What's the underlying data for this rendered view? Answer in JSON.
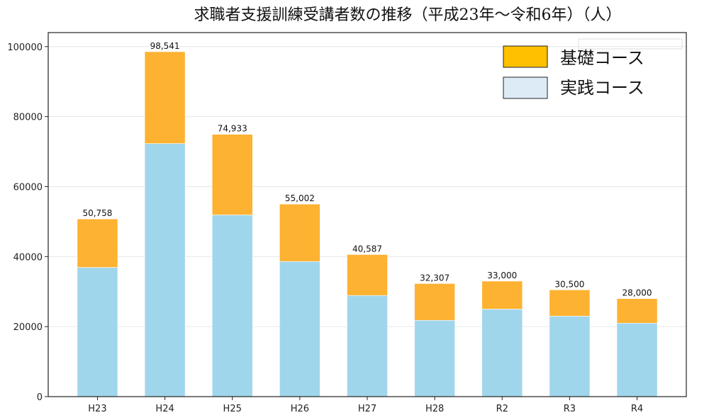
{
  "chart_data": {
    "type": "bar",
    "stacked": true,
    "title": "求職者支援訓練受講者数の推移（平成23年～令和6年）（人）",
    "xlabel": "",
    "ylabel": "",
    "categories": [
      "H23",
      "H24",
      "H25",
      "H26",
      "H27",
      "H28",
      "R2",
      "R3",
      "R4"
    ],
    "series": [
      {
        "name": "実践コース",
        "color": "#A0D6EC",
        "values": [
          36900,
          72300,
          51900,
          38600,
          28900,
          21800,
          25000,
          23000,
          21000
        ]
      },
      {
        "name": "基礎コース",
        "color": "#FDB232",
        "values": [
          13858,
          26241,
          23033,
          16402,
          11687,
          10507,
          8000,
          7500,
          7000
        ]
      }
    ],
    "totals": [
      50758,
      98541,
      74933,
      55002,
      40587,
      32307,
      33000,
      30500,
      28000
    ],
    "total_labels": [
      "50,758",
      "98,541",
      "74,933",
      "55,002",
      "40,587",
      "32,307",
      "33,000",
      "30,500",
      "28,000"
    ],
    "ylim": [
      0,
      104000
    ],
    "yticks": [
      0,
      20000,
      40000,
      60000,
      80000,
      100000
    ],
    "ytick_labels": [
      "0",
      "20000",
      "40000",
      "60000",
      "80000",
      "100000"
    ],
    "grid": "horizontal",
    "legend": {
      "placement": "top-right",
      "entries": [
        {
          "label": "基礎コース",
          "color": "#FFC000"
        },
        {
          "label": "実践コース",
          "color": "#DDEBF7"
        }
      ]
    }
  }
}
